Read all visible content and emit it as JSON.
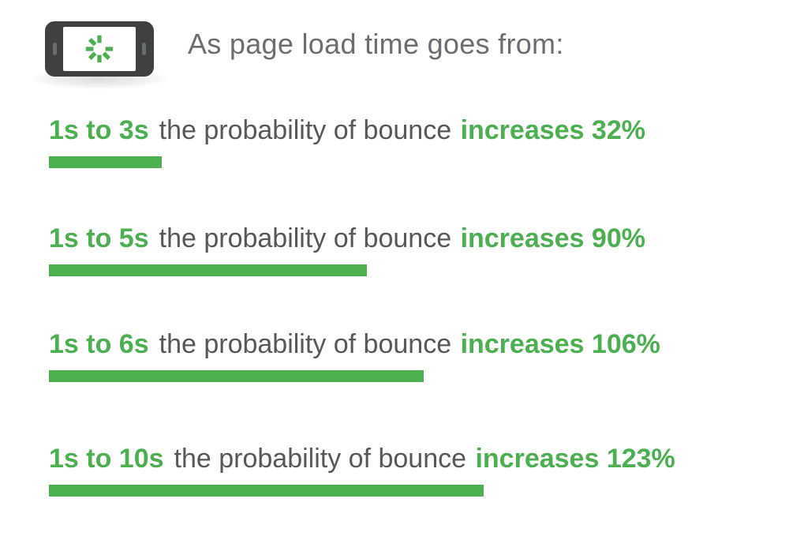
{
  "colors": {
    "accent_green": "#4caf50",
    "row_text_gray": "#56575a",
    "title_gray": "#6c6d70",
    "phone_body_gray": "#3e4042"
  },
  "header": {
    "title": "As page load time goes from:"
  },
  "icons": {
    "phone": "landscape smartphone with loading spinner on screen",
    "spinner": "circular loading spinner, 7 green segments with gap at upper-right"
  },
  "rows": [
    {
      "range": "1s to 3s",
      "middle": "the probability of bounce",
      "result": "increases 32%"
    },
    {
      "range": "1s to 5s",
      "middle": "the probability of bounce",
      "result": "increases 90%"
    },
    {
      "range": "1s to 6s",
      "middle": "the probability of bounce",
      "result": "increases 106%"
    },
    {
      "range": "1s to 10s",
      "middle": "the probability of bounce",
      "result": "increases 123%"
    }
  ],
  "chart_data": {
    "type": "bar",
    "orientation": "horizontal",
    "title": "As page load time goes from:",
    "categories": [
      "1s to 3s",
      "1s to 5s",
      "1s to 6s",
      "1s to 10s"
    ],
    "values": [
      32,
      90,
      106,
      123
    ],
    "unit": "%",
    "series_label": "probability of bounce increase",
    "bar_color": "#4caf50",
    "xlim": [
      0,
      130
    ],
    "grid": false,
    "legend": false,
    "annotations": [
      "1s to 3s the probability of bounce increases 32%",
      "1s to 5s the probability of bounce increases 90%",
      "1s to 6s the probability of bounce increases 106%",
      "1s to 10s the probability of bounce increases 123%"
    ]
  }
}
